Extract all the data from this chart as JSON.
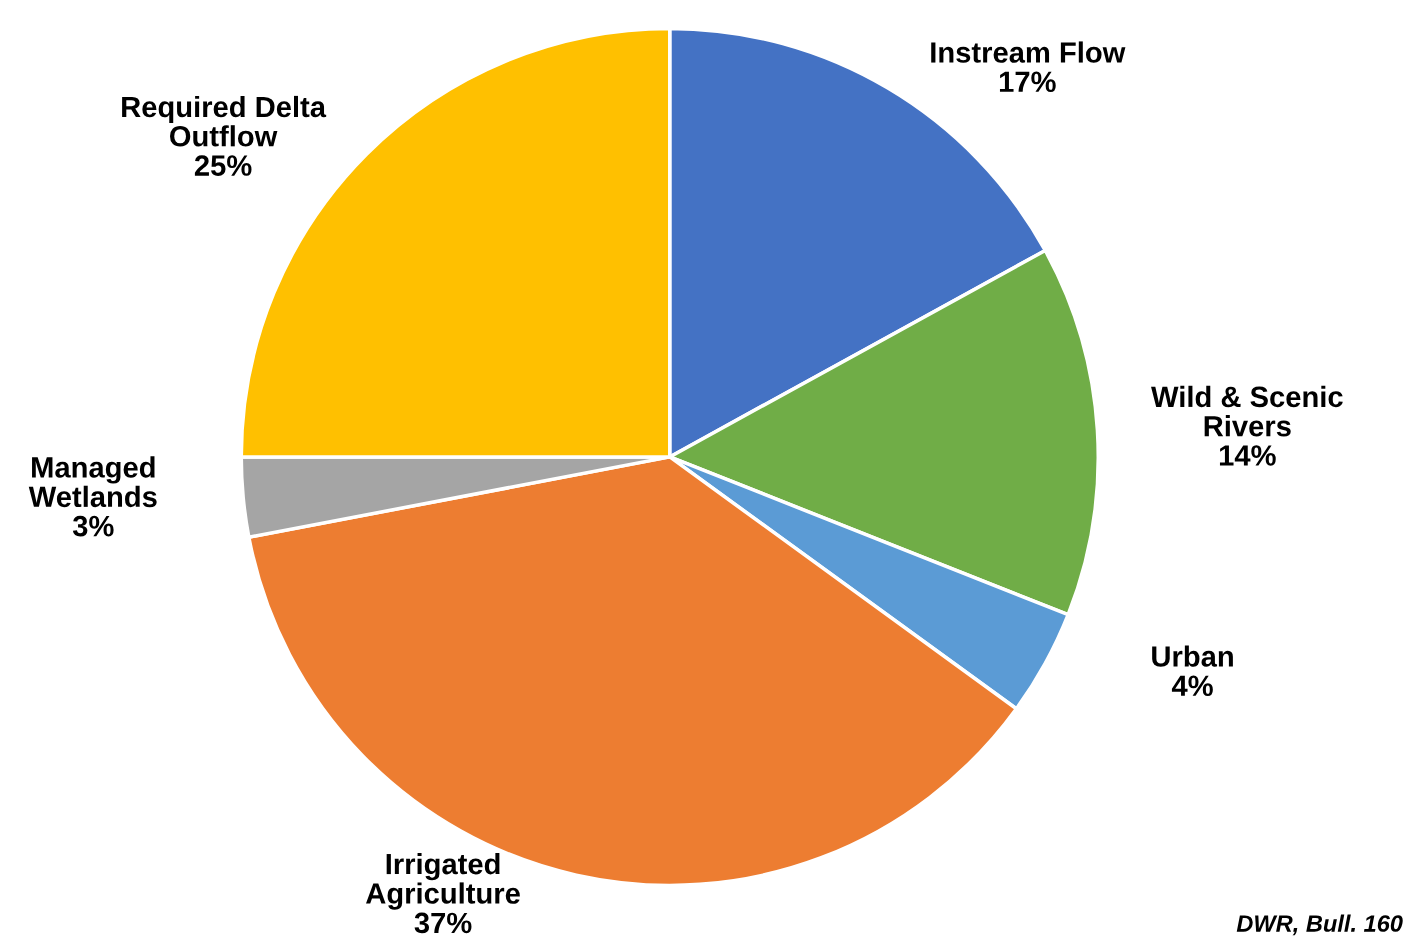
{
  "chart_data": {
    "type": "pie",
    "categories": [
      "Instream Flow",
      "Wild & Scenic\nRivers",
      "Urban",
      "Irrigated\nAgriculture",
      "Managed\nWetlands",
      "Required Delta\nOutflow"
    ],
    "values": [
      17,
      14,
      4,
      37,
      3,
      25
    ],
    "value_labels": [
      "17%",
      "14%",
      "4%",
      "37%",
      "3%",
      "25%"
    ],
    "colors": [
      "#4472c4",
      "#70ad47",
      "#5b9bd5",
      "#ed7d31",
      "#a5a5a5",
      "#ffc000"
    ],
    "annotations": [
      "DWR, Bull. 160"
    ],
    "legend": false
  }
}
